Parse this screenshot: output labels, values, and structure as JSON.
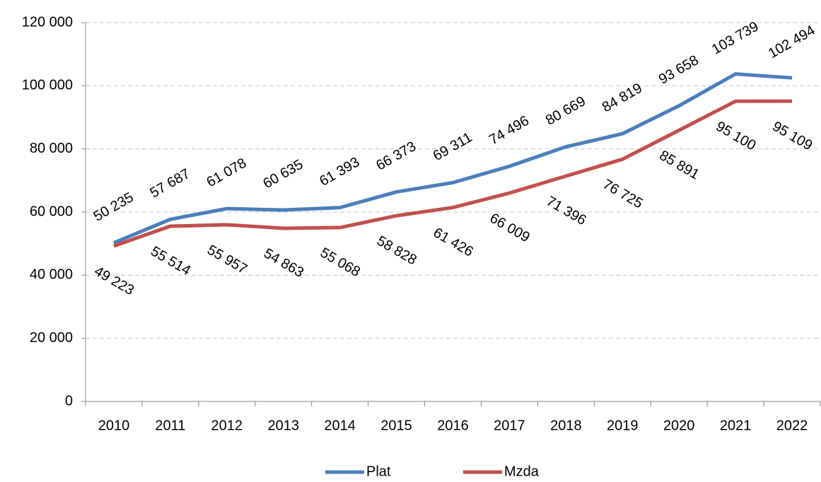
{
  "chart_data": {
    "type": "line",
    "categories": [
      "2010",
      "2011",
      "2012",
      "2013",
      "2014",
      "2015",
      "2016",
      "2017",
      "2018",
      "2019",
      "2020",
      "2021",
      "2022"
    ],
    "series": [
      {
        "name": "Plat",
        "color": "#4a7ebb",
        "values": [
          50235,
          57687,
          61078,
          60635,
          61393,
          66373,
          69311,
          74496,
          80669,
          84819,
          93658,
          103739,
          102494
        ],
        "value_labels": [
          "50 235",
          "57 687",
          "61 078",
          "60 635",
          "61 393",
          "66 373",
          "69 311",
          "74 496",
          "80 669",
          "84 819",
          "93 658",
          "103 739",
          "102 494"
        ]
      },
      {
        "name": "Mzda",
        "color": "#c0504d",
        "values": [
          49223,
          55514,
          55957,
          54863,
          55068,
          58828,
          61426,
          66009,
          71396,
          76725,
          85891,
          95100,
          95109
        ],
        "value_labels": [
          "49 223",
          "55 514",
          "55 957",
          "54 863",
          "55 068",
          "58 828",
          "61 426",
          "66 009",
          "71 396",
          "76 725",
          "85 891",
          "95 100",
          "95 109"
        ]
      }
    ],
    "ylim": [
      0,
      120000
    ],
    "yticks": [
      0,
      {
        "value": 20000,
        "label": "20 000"
      },
      {
        "value": 40000,
        "label": "40 000"
      },
      {
        "value": 60000,
        "label": "60 000"
      },
      {
        "value": 80000,
        "label": "80 000"
      },
      {
        "value": 100000,
        "label": "100 000"
      },
      {
        "value": 120000,
        "label": "120 000"
      }
    ],
    "grid": true,
    "legend": "bottom"
  }
}
